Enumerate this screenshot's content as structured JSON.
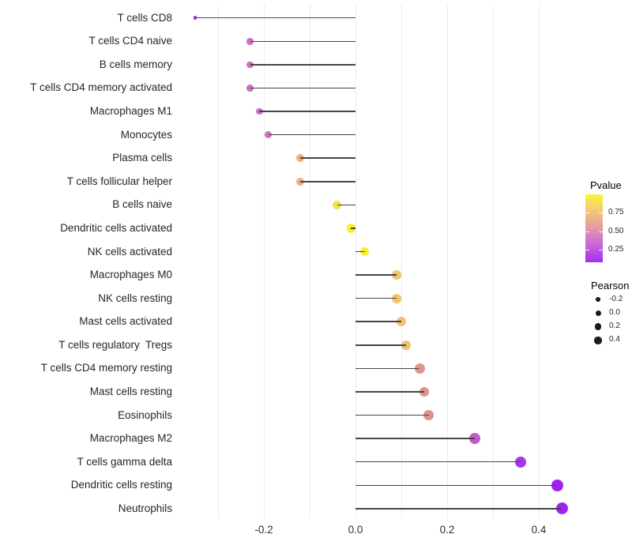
{
  "chart_data": {
    "type": "scatter",
    "style": "lollipop",
    "title": "",
    "xlabel": "",
    "ylabel": "",
    "grid": "vertical-only",
    "x_axis": {
      "xlim": [
        -0.39,
        0.49
      ],
      "tick_labels": [
        {
          "label": "-0.2",
          "value": -0.2
        },
        {
          "label": "0.0",
          "value": 0.0
        },
        {
          "label": "0.2",
          "value": 0.2
        },
        {
          "label": "0.4",
          "value": 0.4
        }
      ],
      "gridline_values": [
        -0.3,
        -0.2,
        -0.1,
        0.0,
        0.1,
        0.2,
        0.3,
        0.4
      ]
    },
    "points": [
      {
        "label": "T cells CD8",
        "pearson": -0.35,
        "pvalue": 0.1,
        "color": "#A42DF0"
      },
      {
        "label": "T cells CD4 naive",
        "pearson": -0.23,
        "pvalue": 0.33,
        "color": "#CE6FC0"
      },
      {
        "label": "B cells memory",
        "pearson": -0.23,
        "pvalue": 0.33,
        "color": "#CE6FC0"
      },
      {
        "label": "T cells CD4 memory activated",
        "pearson": -0.23,
        "pvalue": 0.33,
        "color": "#CE6FC0"
      },
      {
        "label": "Macrophages M1",
        "pearson": -0.21,
        "pvalue": 0.33,
        "color": "#CD70C1"
      },
      {
        "label": "Monocytes",
        "pearson": -0.19,
        "pvalue": 0.35,
        "color": "#CF73BD"
      },
      {
        "label": "Plasma cells",
        "pearson": -0.12,
        "pvalue": 0.65,
        "color": "#EFAE7D"
      },
      {
        "label": "T cells follicular helper",
        "pearson": -0.12,
        "pvalue": 0.65,
        "color": "#EFAE7D"
      },
      {
        "label": "B cells naive",
        "pearson": -0.04,
        "pvalue": 0.88,
        "color": "#F2E24C"
      },
      {
        "label": "Dendritic cells activated",
        "pearson": -0.01,
        "pvalue": 0.97,
        "color": "#F8EF2F"
      },
      {
        "label": "NK cells activated",
        "pearson": 0.02,
        "pvalue": 0.97,
        "color": "#F8EF2F"
      },
      {
        "label": "Macrophages M0",
        "pearson": 0.09,
        "pvalue": 0.75,
        "color": "#F1C46E"
      },
      {
        "label": "NK cells resting",
        "pearson": 0.09,
        "pvalue": 0.75,
        "color": "#F1C46E"
      },
      {
        "label": "Mast cells activated",
        "pearson": 0.1,
        "pvalue": 0.74,
        "color": "#F1C377"
      },
      {
        "label": "T cells regulatory  Tregs",
        "pearson": 0.11,
        "pvalue": 0.73,
        "color": "#F0C172"
      },
      {
        "label": "T cells CD4 memory resting",
        "pearson": 0.14,
        "pvalue": 0.52,
        "color": "#E29490"
      },
      {
        "label": "Mast cells resting",
        "pearson": 0.15,
        "pvalue": 0.52,
        "color": "#E0928E"
      },
      {
        "label": "Eosinophils",
        "pearson": 0.16,
        "pvalue": 0.5,
        "color": "#DE908C"
      },
      {
        "label": "Macrophages M2",
        "pearson": 0.26,
        "pvalue": 0.27,
        "color": "#C45AC8"
      },
      {
        "label": "T cells gamma delta",
        "pearson": 0.36,
        "pvalue": 0.15,
        "color": "#A937E8"
      },
      {
        "label": "Dendritic cells resting",
        "pearson": 0.44,
        "pvalue": 0.06,
        "color": "#A221F1"
      },
      {
        "label": "Neutrophils",
        "pearson": 0.45,
        "pvalue": 0.06,
        "color": "#A221F1"
      }
    ]
  },
  "legend": {
    "pvalue": {
      "title": "Pvalue",
      "range": [
        0.08,
        1.0
      ],
      "gradient_bottom_to_top": [
        "#A32CF1",
        "#C964D9",
        "#E398A6",
        "#F2C779",
        "#FAF43B"
      ],
      "ticks": [
        {
          "label": "0.75",
          "value": 0.75
        },
        {
          "label": "0.50",
          "value": 0.5
        },
        {
          "label": "0.25",
          "value": 0.25
        }
      ]
    },
    "pearson": {
      "title": "Pearson",
      "dot_color": "#1a1a1a",
      "items": [
        {
          "label": "-0.2",
          "value": -0.2
        },
        {
          "label": "0.0",
          "value": 0.0
        },
        {
          "label": "0.2",
          "value": 0.2
        },
        {
          "label": "0.4",
          "value": 0.4
        }
      ]
    }
  }
}
